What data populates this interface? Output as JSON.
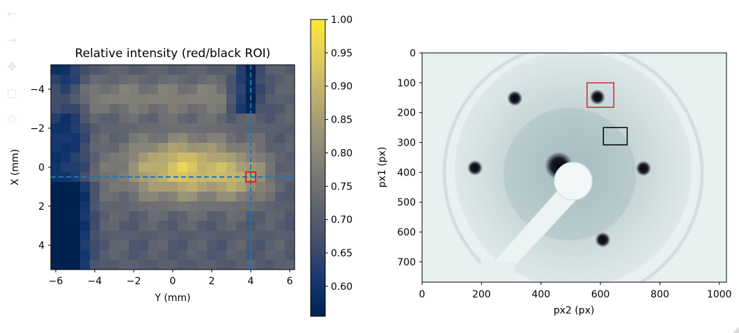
{
  "toolbar": {
    "buttons": [
      {
        "name": "back-icon",
        "glyph": "←"
      },
      {
        "name": "forward-icon",
        "glyph": "→"
      },
      {
        "name": "pan-icon",
        "glyph": "✥"
      },
      {
        "name": "zoom-icon",
        "glyph": "▢"
      },
      {
        "name": "save-icon",
        "glyph": "⎙"
      }
    ]
  },
  "chart_data": [
    {
      "type": "heatmap",
      "title": "Relative intensity (red/black ROI)",
      "xlabel": "Y (mm)",
      "ylabel": "X (mm)",
      "xlim": [
        -6.25,
        6.25
      ],
      "ylim": [
        5.25,
        -5.25
      ],
      "xticks": [
        -6,
        -4,
        -2,
        0,
        2,
        4,
        6
      ],
      "yticks": [
        -4,
        -2,
        0,
        2,
        4
      ],
      "xtick_labels": [
        "−6",
        "−4",
        "−2",
        "0",
        "2",
        "4",
        "6"
      ],
      "ytick_labels": [
        "−4",
        "−2",
        "0",
        "2",
        "4"
      ],
      "grid_step_mm": 0.5,
      "crosshair": {
        "y": 4.0,
        "x": 0.5,
        "color": "#1f77b4"
      },
      "roi_marker": {
        "y": 4.0,
        "x": 0.5,
        "color": "#d62728"
      },
      "colorbar": {
        "min": 0.555,
        "max": 1.0,
        "ticks": [
          0.6,
          0.65,
          0.7,
          0.75,
          0.8,
          0.85,
          0.9,
          0.95,
          1.0
        ],
        "tick_labels": [
          "0.60",
          "0.65",
          "0.70",
          "0.75",
          "0.80",
          "0.85",
          "0.90",
          "0.95",
          "1.00"
        ],
        "colormap": "cividis"
      }
    },
    {
      "type": "image",
      "xlabel": "px2 (px)",
      "ylabel": "px1 (px)",
      "xlim": [
        0,
        1024
      ],
      "ylim": [
        768,
        0
      ],
      "xticks": [
        0,
        200,
        400,
        600,
        800,
        1000
      ],
      "yticks": [
        0,
        100,
        200,
        300,
        400,
        500,
        600,
        700
      ],
      "xtick_labels": [
        "0",
        "200",
        "400",
        "600",
        "800",
        "1000"
      ],
      "ytick_labels": [
        "0",
        "100",
        "200",
        "300",
        "400",
        "500",
        "600",
        "700"
      ],
      "red_roi": {
        "x": [
          555,
          645
        ],
        "y": [
          100,
          182
        ],
        "color": "#d62728"
      },
      "black_roi": {
        "x": [
          610,
          690
        ],
        "y": [
          250,
          308
        ],
        "color": "#000000"
      },
      "spots": [
        {
          "px2": 312,
          "px1": 152
        },
        {
          "px2": 590,
          "px1": 148
        },
        {
          "px2": 178,
          "px1": 385
        },
        {
          "px2": 745,
          "px1": 387
        },
        {
          "px2": 608,
          "px1": 626
        },
        {
          "px2": 460,
          "px1": 378
        }
      ],
      "colormap": "bone_r"
    }
  ]
}
